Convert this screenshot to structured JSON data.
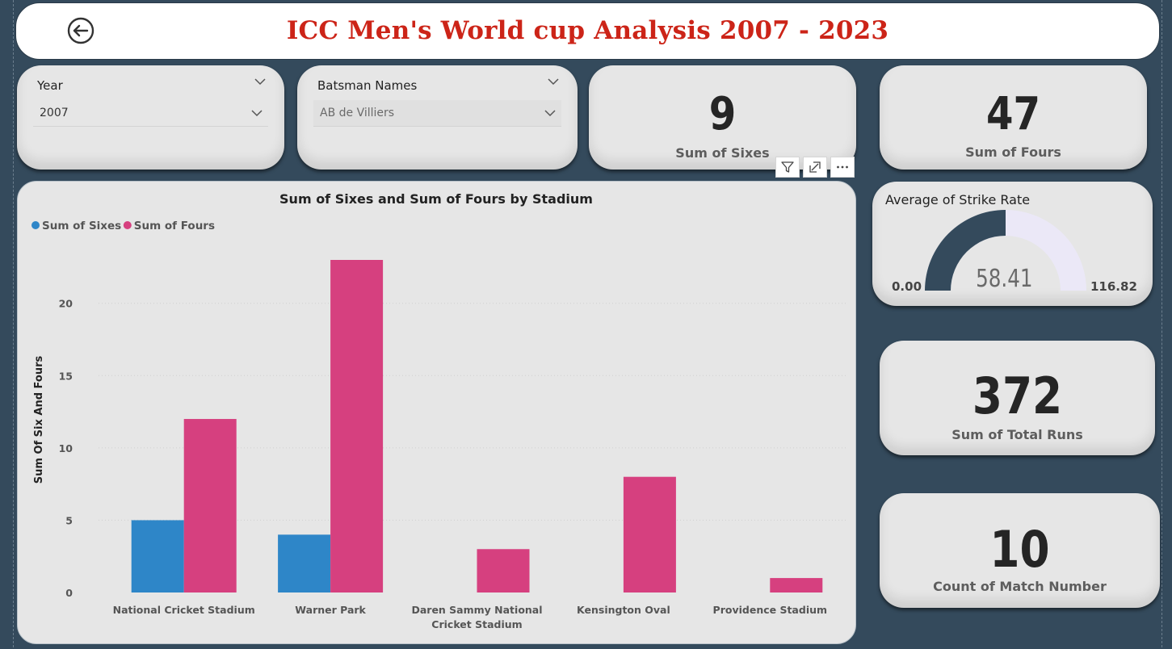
{
  "header": {
    "title": "ICC Men's World cup Analysis 2007 - 2023",
    "back_icon": "back-arrow-circle-icon"
  },
  "slicers": {
    "year": {
      "title": "Year",
      "value": "2007"
    },
    "batsman": {
      "title": "Batsman Names",
      "value": "AB de Villiers"
    }
  },
  "kpis": {
    "sixes": {
      "value": "9",
      "label": "Sum of Sixes"
    },
    "fours": {
      "value": "47",
      "label": "Sum of Fours"
    },
    "total_runs": {
      "value": "372",
      "label": "Sum of Total Runs"
    },
    "matches": {
      "value": "10",
      "label": "Count of Match Number"
    }
  },
  "gauge": {
    "title": "Average of Strike Rate",
    "value": 58.41,
    "value_label": "58.41",
    "min_label": "0.00",
    "max_label": "116.82",
    "min": 0,
    "max": 116.82,
    "fill_color": "#344a5c",
    "track_color": "#ebe8f7"
  },
  "toolbar": {
    "filter_icon": "filter-icon",
    "focus_icon": "focus-mode-icon",
    "more_icon": "more-options-icon"
  },
  "chart_data": {
    "type": "bar",
    "title": "Sum of Sixes and Sum of Fours by Stadium",
    "xlabel": "",
    "ylabel": "Sum Of Six And Fours",
    "ylim": [
      0,
      23
    ],
    "yticks": [
      0,
      5,
      10,
      15,
      20
    ],
    "grid": true,
    "legend": "top-left",
    "categories": [
      [
        "National Cricket Stadium"
      ],
      [
        "Warner Park"
      ],
      [
        "Daren Sammy National",
        "Cricket Stadium"
      ],
      [
        "Kensington Oval"
      ],
      [
        "Providence Stadium"
      ]
    ],
    "series": [
      {
        "name": "Sum of Sixes",
        "color": "#2e86c8",
        "values": [
          5,
          4,
          0,
          0,
          0
        ]
      },
      {
        "name": "Sum of Fours",
        "color": "#d6407f",
        "values": [
          12,
          23,
          3,
          8,
          1
        ]
      }
    ]
  }
}
